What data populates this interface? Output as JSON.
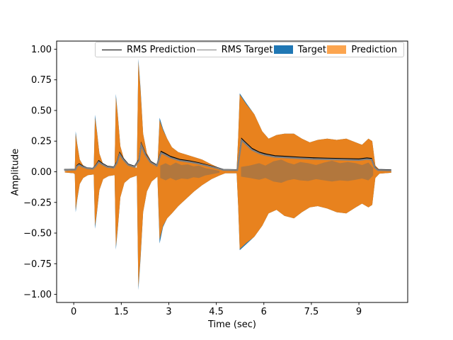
{
  "chart_data": {
    "type": "area",
    "title": "",
    "xlabel": "Time (sec)",
    "ylabel": "Amplitude",
    "xlim": [
      -0.54,
      10.54
    ],
    "ylim": [
      -1.066,
      1.066
    ],
    "grid": false,
    "legend_position": "upper center",
    "xtick_values": [
      0,
      1.5,
      3,
      4.5,
      6,
      7.5,
      9
    ],
    "xtick_labels": [
      "0",
      "1.5",
      "3",
      "4.5",
      "6",
      "7.5",
      "9"
    ],
    "ytick_values": [
      1.0,
      0.75,
      0.5,
      0.25,
      0.0,
      -0.25,
      -0.5,
      -0.75,
      -1.0
    ],
    "ytick_labels": [
      "1.00",
      "0.75",
      "0.50",
      "0.25",
      "0.00",
      "−0.25",
      "−0.50",
      "−0.75",
      "−1.00"
    ],
    "legend": [
      {
        "label": "RMS Prediction",
        "handle": "line",
        "color": "#000000"
      },
      {
        "label": "RMS Target",
        "handle": "line",
        "color": "#808080"
      },
      {
        "label": "Target",
        "handle": "patch",
        "color": "#1f77b4"
      },
      {
        "label": "Prediction",
        "handle": "patch",
        "color": "#fca54f"
      }
    ],
    "colors": {
      "target_fill": "#1f77b4",
      "prediction_fill": "#e8821e",
      "overlap_fill": "#b2773d",
      "rms_prediction": "#000000",
      "rms_target": "#808080",
      "axes": "#000000"
    },
    "series": {
      "target_envelope": [
        [
          -0.28,
          0.006,
          -0.006
        ],
        [
          0.0,
          0.012,
          -0.012
        ],
        [
          0.035,
          0.02,
          -0.02
        ],
        [
          0.06,
          0.33,
          -0.33
        ],
        [
          0.11,
          0.23,
          -0.23
        ],
        [
          0.19,
          0.1,
          -0.1
        ],
        [
          0.3,
          0.05,
          -0.05
        ],
        [
          0.45,
          0.028,
          -0.028
        ],
        [
          0.63,
          0.022,
          -0.022
        ],
        [
          0.67,
          0.465,
          -0.465
        ],
        [
          0.73,
          0.34,
          -0.34
        ],
        [
          0.81,
          0.15,
          -0.15
        ],
        [
          0.93,
          0.06,
          -0.06
        ],
        [
          1.1,
          0.035,
          -0.035
        ],
        [
          1.29,
          0.028,
          -0.028
        ],
        [
          1.33,
          0.635,
          -0.635
        ],
        [
          1.39,
          0.47,
          -0.47
        ],
        [
          1.47,
          0.21,
          -0.21
        ],
        [
          1.6,
          0.09,
          -0.09
        ],
        [
          1.78,
          0.05,
          -0.05
        ],
        [
          1.99,
          0.032,
          -0.032
        ],
        [
          2.04,
          0.92,
          -0.965
        ],
        [
          2.11,
          0.68,
          -0.71
        ],
        [
          2.19,
          0.31,
          -0.33
        ],
        [
          2.31,
          0.15,
          -0.16
        ],
        [
          2.46,
          0.08,
          -0.08
        ],
        [
          2.64,
          0.04,
          -0.04
        ],
        [
          2.71,
          0.44,
          -0.585
        ],
        [
          2.82,
          0.35,
          -0.45
        ],
        [
          2.95,
          0.27,
          -0.38
        ],
        [
          3.1,
          0.2,
          -0.34
        ],
        [
          3.3,
          0.16,
          -0.28
        ],
        [
          3.55,
          0.14,
          -0.22
        ],
        [
          3.8,
          0.12,
          -0.16
        ],
        [
          4.05,
          0.1,
          -0.11
        ],
        [
          4.35,
          0.06,
          -0.06
        ],
        [
          4.6,
          0.03,
          -0.03
        ],
        [
          4.78,
          0.012,
          -0.012
        ],
        [
          5.14,
          0.012,
          -0.012
        ],
        [
          5.19,
          0.28,
          -0.28
        ],
        [
          5.24,
          0.64,
          -0.64
        ],
        [
          5.45,
          0.56,
          -0.59
        ],
        [
          5.7,
          0.47,
          -0.53
        ],
        [
          5.95,
          0.33,
          -0.44
        ],
        [
          6.15,
          0.27,
          -0.34
        ],
        [
          6.4,
          0.3,
          -0.31
        ],
        [
          6.65,
          0.31,
          -0.36
        ],
        [
          6.95,
          0.31,
          -0.38
        ],
        [
          7.2,
          0.27,
          -0.33
        ],
        [
          7.45,
          0.24,
          -0.29
        ],
        [
          7.7,
          0.26,
          -0.28
        ],
        [
          8.0,
          0.27,
          -0.3
        ],
        [
          8.3,
          0.26,
          -0.33
        ],
        [
          8.6,
          0.27,
          -0.34
        ],
        [
          8.9,
          0.24,
          -0.29
        ],
        [
          9.1,
          0.22,
          -0.26
        ],
        [
          9.3,
          0.27,
          -0.29
        ],
        [
          9.42,
          0.25,
          -0.27
        ],
        [
          9.52,
          0.05,
          -0.05
        ],
        [
          9.65,
          0.015,
          -0.015
        ],
        [
          10.02,
          0.008,
          -0.008
        ]
      ],
      "prediction_envelope": [
        [
          -0.28,
          0.006,
          -0.006
        ],
        [
          0.0,
          0.012,
          -0.012
        ],
        [
          0.035,
          0.02,
          -0.02
        ],
        [
          0.06,
          0.31,
          -0.31
        ],
        [
          0.11,
          0.22,
          -0.22
        ],
        [
          0.19,
          0.1,
          -0.1
        ],
        [
          0.3,
          0.05,
          -0.05
        ],
        [
          0.45,
          0.028,
          -0.028
        ],
        [
          0.63,
          0.022,
          -0.022
        ],
        [
          0.67,
          0.44,
          -0.44
        ],
        [
          0.73,
          0.33,
          -0.33
        ],
        [
          0.81,
          0.15,
          -0.15
        ],
        [
          0.93,
          0.06,
          -0.06
        ],
        [
          1.1,
          0.035,
          -0.035
        ],
        [
          1.29,
          0.028,
          -0.028
        ],
        [
          1.33,
          0.61,
          -0.61
        ],
        [
          1.39,
          0.46,
          -0.46
        ],
        [
          1.47,
          0.21,
          -0.21
        ],
        [
          1.6,
          0.09,
          -0.09
        ],
        [
          1.78,
          0.05,
          -0.05
        ],
        [
          1.99,
          0.032,
          -0.032
        ],
        [
          2.04,
          0.9,
          -0.94
        ],
        [
          2.11,
          0.66,
          -0.69
        ],
        [
          2.19,
          0.31,
          -0.33
        ],
        [
          2.31,
          0.15,
          -0.16
        ],
        [
          2.46,
          0.08,
          -0.08
        ],
        [
          2.64,
          0.04,
          -0.04
        ],
        [
          2.71,
          0.42,
          -0.55
        ],
        [
          2.82,
          0.34,
          -0.44
        ],
        [
          2.95,
          0.27,
          -0.38
        ],
        [
          3.1,
          0.2,
          -0.34
        ],
        [
          3.3,
          0.16,
          -0.28
        ],
        [
          3.55,
          0.14,
          -0.22
        ],
        [
          3.8,
          0.12,
          -0.16
        ],
        [
          4.05,
          0.1,
          -0.11
        ],
        [
          4.35,
          0.06,
          -0.06
        ],
        [
          4.6,
          0.03,
          -0.03
        ],
        [
          4.78,
          0.012,
          -0.012
        ],
        [
          5.14,
          0.012,
          -0.012
        ],
        [
          5.19,
          0.28,
          -0.28
        ],
        [
          5.24,
          0.63,
          -0.63
        ],
        [
          5.45,
          0.55,
          -0.58
        ],
        [
          5.7,
          0.47,
          -0.53
        ],
        [
          5.95,
          0.33,
          -0.44
        ],
        [
          6.15,
          0.27,
          -0.34
        ],
        [
          6.4,
          0.3,
          -0.31
        ],
        [
          6.65,
          0.31,
          -0.36
        ],
        [
          6.95,
          0.31,
          -0.38
        ],
        [
          7.2,
          0.27,
          -0.33
        ],
        [
          7.45,
          0.24,
          -0.29
        ],
        [
          7.7,
          0.26,
          -0.28
        ],
        [
          8.0,
          0.27,
          -0.3
        ],
        [
          8.3,
          0.26,
          -0.33
        ],
        [
          8.6,
          0.27,
          -0.34
        ],
        [
          8.9,
          0.24,
          -0.29
        ],
        [
          9.1,
          0.22,
          -0.26
        ],
        [
          9.3,
          0.27,
          -0.29
        ],
        [
          9.42,
          0.25,
          -0.27
        ],
        [
          9.52,
          0.05,
          -0.05
        ],
        [
          9.65,
          0.015,
          -0.015
        ],
        [
          10.02,
          0.008,
          -0.008
        ]
      ],
      "overlap_bands": [
        [
          [
            2.73,
            0.05,
            -0.05
          ],
          [
            2.9,
            0.07,
            -0.07
          ],
          [
            3.05,
            0.05,
            -0.05
          ],
          [
            3.22,
            0.075,
            -0.07
          ],
          [
            3.4,
            0.055,
            -0.055
          ],
          [
            3.6,
            0.06,
            -0.06
          ],
          [
            3.78,
            0.045,
            -0.045
          ],
          [
            3.95,
            0.05,
            -0.05
          ],
          [
            4.15,
            0.03,
            -0.03
          ],
          [
            4.4,
            0.018,
            -0.018
          ],
          [
            4.6,
            0.008,
            -0.008
          ]
        ],
        [
          [
            5.28,
            0.04,
            -0.04
          ],
          [
            5.55,
            0.05,
            -0.05
          ],
          [
            5.85,
            0.07,
            -0.065
          ],
          [
            6.05,
            0.05,
            -0.05
          ],
          [
            6.3,
            0.085,
            -0.08
          ],
          [
            6.55,
            0.1,
            -0.09
          ],
          [
            6.75,
            0.075,
            -0.07
          ],
          [
            6.95,
            0.06,
            -0.06
          ],
          [
            7.15,
            0.08,
            -0.07
          ],
          [
            7.4,
            0.07,
            -0.075
          ],
          [
            7.65,
            0.055,
            -0.06
          ],
          [
            7.9,
            0.075,
            -0.07
          ],
          [
            8.15,
            0.09,
            -0.08
          ],
          [
            8.4,
            0.07,
            -0.07
          ],
          [
            8.65,
            0.08,
            -0.075
          ],
          [
            8.9,
            0.07,
            -0.065
          ],
          [
            9.1,
            0.055,
            -0.055
          ],
          [
            9.3,
            0.075,
            -0.07
          ],
          [
            9.45,
            0.03,
            -0.03
          ]
        ]
      ],
      "rms_prediction": [
        [
          -0.3,
          0.018
        ],
        [
          0.05,
          0.02
        ],
        [
          0.1,
          0.05
        ],
        [
          0.17,
          0.065
        ],
        [
          0.26,
          0.05
        ],
        [
          0.42,
          0.032
        ],
        [
          0.6,
          0.028
        ],
        [
          0.7,
          0.055
        ],
        [
          0.79,
          0.09
        ],
        [
          0.9,
          0.068
        ],
        [
          1.06,
          0.045
        ],
        [
          1.26,
          0.038
        ],
        [
          1.36,
          0.08
        ],
        [
          1.45,
          0.155
        ],
        [
          1.56,
          0.11
        ],
        [
          1.72,
          0.062
        ],
        [
          1.92,
          0.045
        ],
        [
          2.06,
          0.1
        ],
        [
          2.13,
          0.23
        ],
        [
          2.26,
          0.15
        ],
        [
          2.42,
          0.085
        ],
        [
          2.62,
          0.055
        ],
        [
          2.76,
          0.165
        ],
        [
          2.88,
          0.15
        ],
        [
          3.05,
          0.125
        ],
        [
          3.35,
          0.1
        ],
        [
          3.65,
          0.088
        ],
        [
          3.95,
          0.072
        ],
        [
          4.25,
          0.052
        ],
        [
          4.55,
          0.032
        ],
        [
          4.72,
          0.018
        ],
        [
          5.16,
          0.016
        ],
        [
          5.3,
          0.27
        ],
        [
          5.42,
          0.24
        ],
        [
          5.62,
          0.19
        ],
        [
          5.85,
          0.16
        ],
        [
          6.05,
          0.145
        ],
        [
          6.35,
          0.13
        ],
        [
          6.75,
          0.124
        ],
        [
          7.15,
          0.118
        ],
        [
          7.55,
          0.113
        ],
        [
          8.0,
          0.11
        ],
        [
          8.5,
          0.107
        ],
        [
          9.0,
          0.104
        ],
        [
          9.25,
          0.112
        ],
        [
          9.4,
          0.108
        ],
        [
          9.5,
          0.04
        ],
        [
          9.6,
          0.018
        ],
        [
          10.02,
          0.015
        ]
      ],
      "rms_target": [
        [
          -0.3,
          0.018
        ],
        [
          0.05,
          0.02
        ],
        [
          0.1,
          0.047
        ],
        [
          0.17,
          0.06
        ],
        [
          0.26,
          0.047
        ],
        [
          0.42,
          0.032
        ],
        [
          0.6,
          0.028
        ],
        [
          0.7,
          0.052
        ],
        [
          0.79,
          0.084
        ],
        [
          0.9,
          0.064
        ],
        [
          1.06,
          0.043
        ],
        [
          1.26,
          0.037
        ],
        [
          1.36,
          0.075
        ],
        [
          1.45,
          0.147
        ],
        [
          1.56,
          0.104
        ],
        [
          1.72,
          0.059
        ],
        [
          1.92,
          0.043
        ],
        [
          2.06,
          0.095
        ],
        [
          2.13,
          0.222
        ],
        [
          2.26,
          0.144
        ],
        [
          2.42,
          0.081
        ],
        [
          2.62,
          0.052
        ],
        [
          2.76,
          0.158
        ],
        [
          2.88,
          0.143
        ],
        [
          3.05,
          0.119
        ],
        [
          3.35,
          0.095
        ],
        [
          3.65,
          0.084
        ],
        [
          3.95,
          0.069
        ],
        [
          4.25,
          0.05
        ],
        [
          4.55,
          0.031
        ],
        [
          4.72,
          0.018
        ],
        [
          5.16,
          0.016
        ],
        [
          5.3,
          0.262
        ],
        [
          5.42,
          0.232
        ],
        [
          5.62,
          0.183
        ],
        [
          5.85,
          0.154
        ],
        [
          6.05,
          0.139
        ],
        [
          6.35,
          0.125
        ],
        [
          6.75,
          0.119
        ],
        [
          7.15,
          0.113
        ],
        [
          7.55,
          0.108
        ],
        [
          8.0,
          0.105
        ],
        [
          8.5,
          0.102
        ],
        [
          9.0,
          0.099
        ],
        [
          9.25,
          0.107
        ],
        [
          9.4,
          0.103
        ],
        [
          9.5,
          0.038
        ],
        [
          9.6,
          0.017
        ],
        [
          10.02,
          0.014
        ]
      ]
    }
  }
}
